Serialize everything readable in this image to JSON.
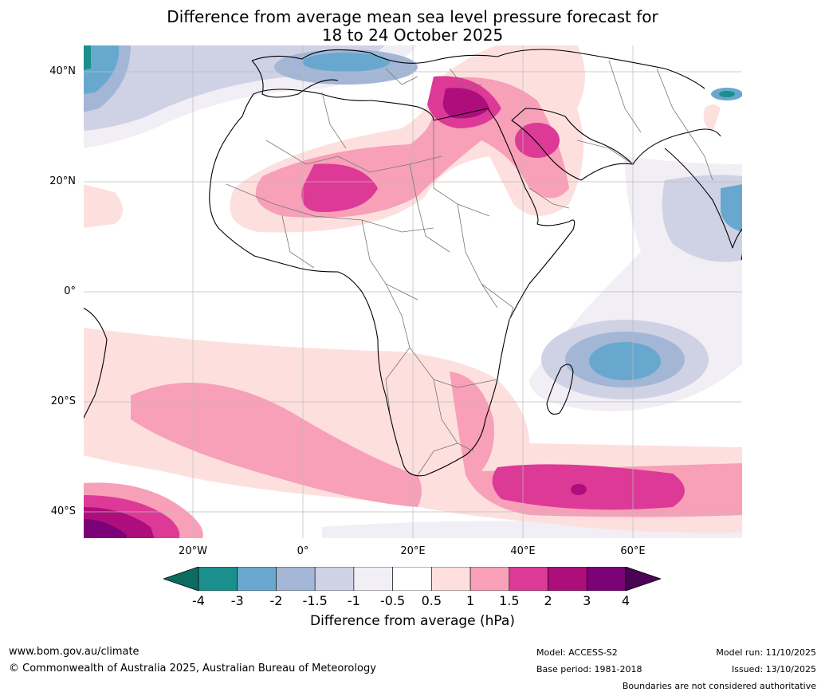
{
  "title": {
    "line1": "Difference from average mean sea level pressure forecast for",
    "line2": "18 to 24 October 2025"
  },
  "map": {
    "lat_labels": [
      "40°N",
      "20°N",
      "0°",
      "20°S",
      "40°S"
    ],
    "lon_labels": [
      "20°W",
      "0°",
      "20°E",
      "40°E",
      "60°E"
    ],
    "lat_values": [
      40,
      20,
      0,
      -20,
      -40
    ],
    "lon_values": [
      -20,
      0,
      20,
      40,
      60
    ],
    "extent": {
      "lon_min": -40,
      "lon_max": 80,
      "lat_min": -45,
      "lat_max": 45
    }
  },
  "colorbar": {
    "ticks": [
      "-4",
      "-3",
      "-2",
      "-1.5",
      "-1",
      "-0.5",
      "0.5",
      "1",
      "1.5",
      "2",
      "3",
      "4"
    ],
    "label": "Difference from average (hPa)",
    "colors": [
      "#1a8f8c",
      "#68a8cf",
      "#a3b6d6",
      "#cfd1e5",
      "#f2eef5",
      "#ffffff",
      "#fde0de",
      "#f7a0b8",
      "#dc3a96",
      "#ad0e7c",
      "#7a0176"
    ],
    "under_color": "#0e6b60",
    "over_color": "#4b0355"
  },
  "footer": {
    "website": "www.bom.gov.au/climate",
    "copyright": "© Commonwealth of Australia 2025, Australian Bureau of Meteorology",
    "model": "Model: ACCESS-S2",
    "base_period": "Base period: 1981-2018",
    "model_run": "Model run: 11/10/2025",
    "issued": "Issued: 13/10/2025",
    "disclaimer": "Boundaries are not considered authoritative"
  }
}
